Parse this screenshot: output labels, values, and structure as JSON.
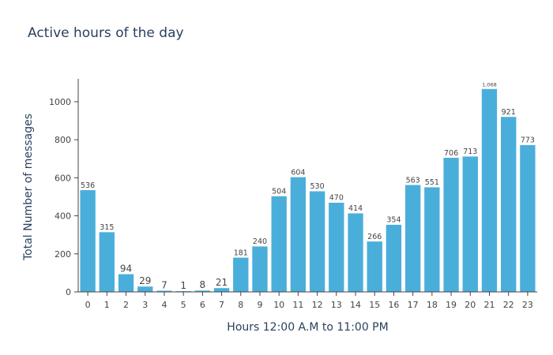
{
  "chart_data": {
    "type": "bar",
    "title": "Active hours of the day",
    "xlabel": "Hours 12:00 A.M to 11:00 PM",
    "ylabel": "Total Number of messages",
    "categories": [
      "0",
      "1",
      "2",
      "3",
      "4",
      "5",
      "6",
      "7",
      "8",
      "9",
      "10",
      "11",
      "12",
      "13",
      "14",
      "15",
      "16",
      "17",
      "18",
      "19",
      "20",
      "21",
      "22",
      "23"
    ],
    "values": [
      536,
      315,
      94,
      29,
      7,
      1,
      8,
      21,
      181,
      240,
      504,
      604,
      530,
      470,
      414,
      266,
      354,
      563,
      551,
      706,
      713,
      1068,
      921,
      773
    ],
    "value_labels": [
      "536",
      "315",
      "94",
      "29",
      "7",
      "1",
      "8",
      "21",
      "181",
      "240",
      "504",
      "604",
      "530",
      "470",
      "414",
      "266",
      "354",
      "563",
      "551",
      "706",
      "713",
      "1,068",
      "921",
      "773"
    ],
    "yticks": [
      0,
      200,
      400,
      600,
      800,
      1000
    ],
    "ytick_labels": [
      "0",
      "200",
      "400",
      "600",
      "800",
      "1000"
    ],
    "ylim": [
      0,
      1120
    ],
    "grid": false,
    "legend": "none",
    "bar_color": "#4aaedb",
    "bar_outline_color": "#ffffff"
  }
}
